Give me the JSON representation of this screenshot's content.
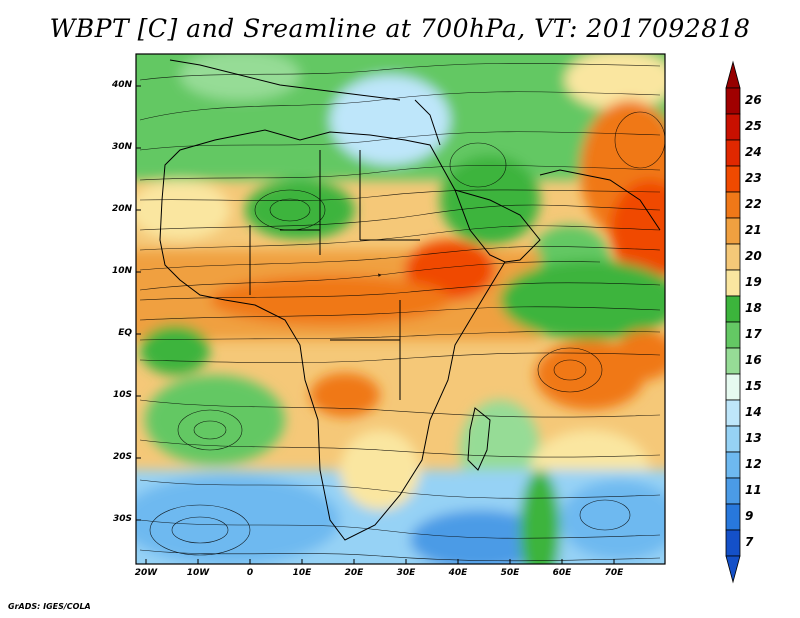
{
  "title": "WBPT [C] and Sreamline at 700hPa, VT: 2017092818",
  "lat_labels": [
    "40N",
    "30N",
    "20N",
    "10N",
    "EQ",
    "10S",
    "20S",
    "30S"
  ],
  "lon_labels": [
    "20W",
    "10W",
    "0",
    "10E",
    "20E",
    "30E",
    "40E",
    "50E",
    "60E",
    "70E"
  ],
  "colorbar": {
    "labels": [
      "26",
      "25",
      "24",
      "23",
      "22",
      "21",
      "20",
      "19",
      "18",
      "17",
      "16",
      "15",
      "14",
      "13",
      "12",
      "11",
      "9",
      "7"
    ],
    "colors": [
      "#a00000",
      "#c81000",
      "#e02800",
      "#f04a00",
      "#f07818",
      "#f0a040",
      "#f5c878",
      "#fae6a0",
      "#3cb43c",
      "#64c864",
      "#96dc96",
      "#e6faf0",
      "#bee6fa",
      "#96d2f5",
      "#6eb9f0",
      "#4b9be6",
      "#2878dc",
      "#1450c8"
    ],
    "top_arrow_color": "#960000",
    "bottom_arrow_color": "#1450c8"
  },
  "credit": "GrADS: IGES/COLA"
}
